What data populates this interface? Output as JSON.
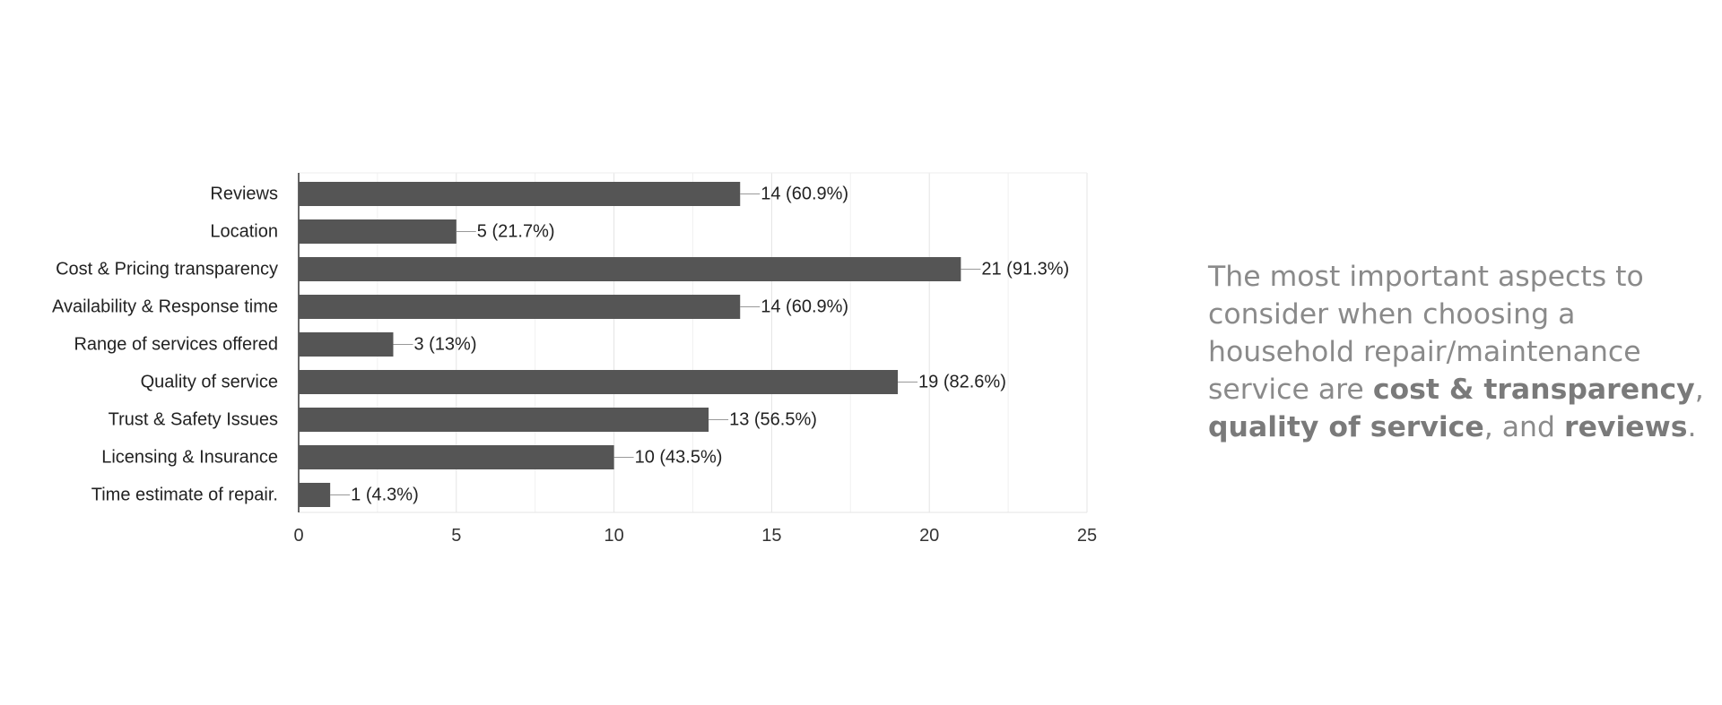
{
  "chart_data": {
    "type": "bar",
    "orientation": "horizontal",
    "categories": [
      "Reviews",
      "Location",
      "Cost & Pricing transparency",
      "Availability & Response time",
      "Range of services offered",
      "Quality of service",
      "Trust & Safety Issues",
      "Licensing & Insurance",
      "Time estimate of repair."
    ],
    "values": [
      14,
      5,
      21,
      14,
      3,
      19,
      13,
      10,
      1
    ],
    "data_labels": [
      "14 (60.9%)",
      "5 (21.7%)",
      "21 (91.3%)",
      "14 (60.9%)",
      "3 (13%)",
      "19 (82.6%)",
      "13 (56.5%)",
      "10 (43.5%)",
      "1 (4.3%)"
    ],
    "xlim": [
      0,
      25
    ],
    "x_ticks": [
      "0",
      "5",
      "10",
      "15",
      "20",
      "25"
    ],
    "x_tick_values": [
      0,
      5,
      10,
      15,
      20,
      25
    ],
    "title": "",
    "xlabel": "",
    "ylabel": "",
    "grid": true,
    "bar_color": "#555555",
    "grid_color": "#e8e8e8"
  },
  "summary": {
    "part1": "The most important aspects to consider when choosing a household repair/maintenance service are ",
    "bold1": "cost & transparency",
    "part2": ", ",
    "bold2": "quality of service",
    "part3": ", and ",
    "bold3": "reviews",
    "part4": "."
  }
}
